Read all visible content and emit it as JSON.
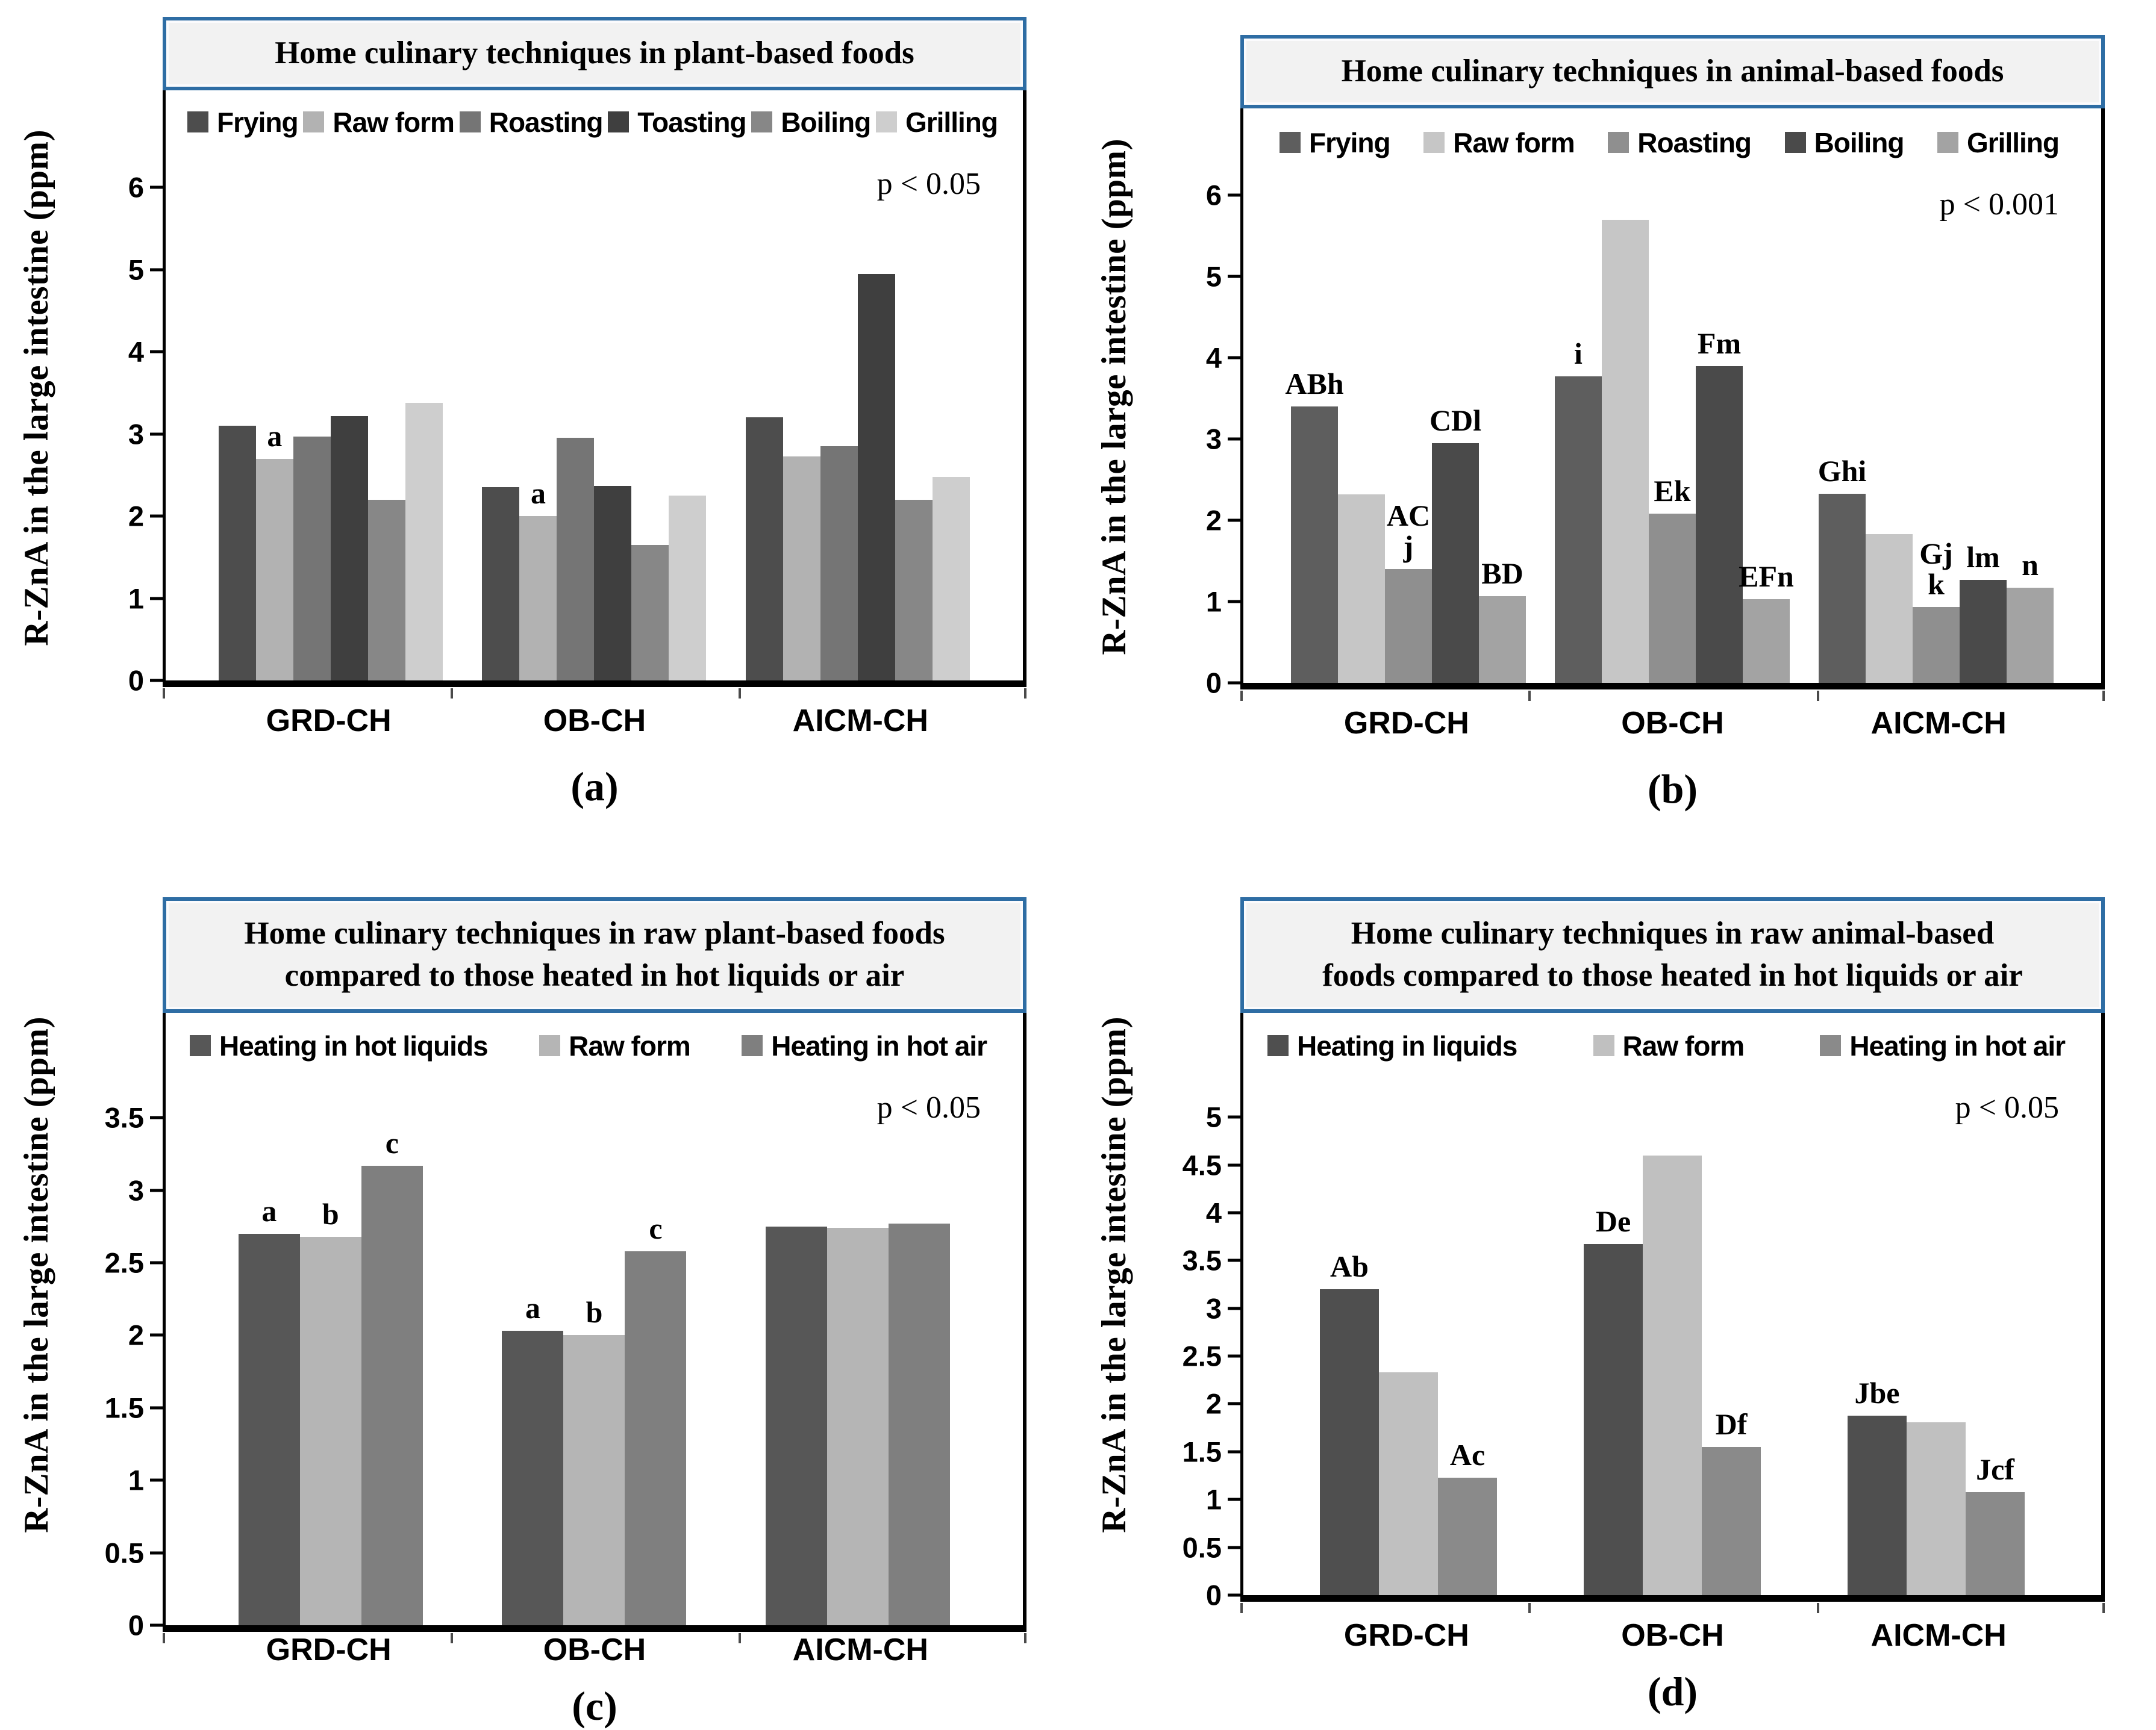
{
  "figure": {
    "ylabel_shared": "R-ZnA in the large intestine (ppm)"
  },
  "chart_data": [
    {
      "type": "bar",
      "panel": "a",
      "title_lines": [
        "Home culinary techniques in plant-based foods"
      ],
      "p_label": "p < 0.05",
      "ylabel": "R-ZnA in the large intestine (ppm)",
      "ylim": [
        0,
        6.45
      ],
      "yticks": [
        "0",
        "1",
        "2",
        "3",
        "4",
        "5",
        "6"
      ],
      "grid": false,
      "legend_position": "top",
      "categories": [
        "GRD-CH",
        "OB-CH",
        "AICM-CH"
      ],
      "series": [
        {
          "name": "Frying",
          "color": "#4d4d4d",
          "values": [
            3.1,
            2.35,
            3.2
          ],
          "annotations": [
            null,
            null,
            null
          ]
        },
        {
          "name": "Raw form",
          "color": "#b2b2b2",
          "values": [
            2.7,
            2.0,
            2.73
          ],
          "annotations": [
            "a",
            "a",
            null
          ]
        },
        {
          "name": "Roasting",
          "color": "#757575",
          "values": [
            2.97,
            2.95,
            2.85
          ],
          "annotations": [
            null,
            null,
            null
          ]
        },
        {
          "name": "Toasting",
          "color": "#3f3f3f",
          "values": [
            3.22,
            2.37,
            4.95
          ],
          "annotations": [
            null,
            null,
            null
          ]
        },
        {
          "name": "Boiling",
          "color": "#878787",
          "values": [
            2.2,
            1.65,
            2.2
          ],
          "annotations": [
            null,
            null,
            null
          ]
        },
        {
          "name": "Grilling",
          "color": "#cecece",
          "values": [
            3.38,
            2.25,
            2.48
          ],
          "annotations": [
            null,
            null,
            null
          ]
        }
      ],
      "caption": "(a)"
    },
    {
      "type": "bar",
      "panel": "b",
      "title_lines": [
        "Home culinary techniques in animal-based foods"
      ],
      "p_label": "p < 0.001",
      "ylabel": "R-ZnA in the large intestine (ppm)",
      "ylim": [
        0,
        6.3
      ],
      "yticks": [
        "0",
        "1",
        "2",
        "3",
        "4",
        "5",
        "6"
      ],
      "grid": false,
      "legend_position": "top",
      "categories": [
        "GRD-CH",
        "OB-CH",
        "AICM-CH"
      ],
      "series": [
        {
          "name": "Frying",
          "color": "#5e5e5e",
          "values": [
            3.4,
            3.77,
            2.33
          ],
          "annotations": [
            "ABh",
            "i",
            "Ghi"
          ]
        },
        {
          "name": "Raw form",
          "color": "#c6c6c6",
          "values": [
            2.32,
            5.7,
            1.83
          ],
          "annotations": [
            null,
            null,
            null
          ]
        },
        {
          "name": "Roasting",
          "color": "#8f8f8f",
          "values": [
            1.4,
            2.08,
            0.93
          ],
          "annotations": [
            "AC\nj",
            "Ek",
            "Gj\nk"
          ]
        },
        {
          "name": "Boiling",
          "color": "#4a4a4a",
          "values": [
            2.95,
            3.9,
            1.27
          ],
          "annotations": [
            "CDl",
            "Fm",
            "lm"
          ]
        },
        {
          "name": "Grilling",
          "color": "#a3a3a3",
          "values": [
            1.07,
            1.03,
            1.17
          ],
          "annotations": [
            "BD",
            "EFn",
            "n"
          ]
        }
      ],
      "caption": "(b)"
    },
    {
      "type": "bar",
      "panel": "c",
      "title_lines": [
        "Home culinary techniques in raw plant-based foods",
        "compared to those heated in hot liquids or air"
      ],
      "p_label": "p < 0.05",
      "ylabel": "R-ZnA in the large intestine (ppm)",
      "ylim": [
        0,
        3.8
      ],
      "yticks": [
        "0",
        "0.5",
        "1",
        "1.5",
        "2",
        "2.5",
        "3",
        "3.5"
      ],
      "grid": false,
      "legend_position": "top",
      "categories": [
        "GRD-CH",
        "OB-CH",
        "AICM-CH"
      ],
      "series": [
        {
          "name": "Heating in hot liquids",
          "color": "#575757",
          "values": [
            2.7,
            2.03,
            2.75
          ],
          "annotations": [
            "a",
            "a",
            null
          ]
        },
        {
          "name": "Raw form",
          "color": "#b5b5b5",
          "values": [
            2.68,
            2.0,
            2.74
          ],
          "annotations": [
            "b",
            "b",
            null
          ]
        },
        {
          "name": "Heating in hot air",
          "color": "#7f7f7f",
          "values": [
            3.17,
            2.58,
            2.77
          ],
          "annotations": [
            "c",
            "c",
            null
          ]
        }
      ],
      "caption": "(c)"
    },
    {
      "type": "bar",
      "panel": "d",
      "title_lines": [
        "Home culinary techniques in raw animal-based",
        "foods compared to those heated in hot liquids or air"
      ],
      "p_label": "p < 0.05",
      "ylabel": "R-ZnA in the large intestine (ppm)",
      "ylim": [
        0,
        5.45
      ],
      "yticks": [
        "0",
        "0.5",
        "1",
        "1.5",
        "2",
        "2.5",
        "3",
        "3.5",
        "4",
        "4.5",
        "5"
      ],
      "grid": false,
      "legend_position": "top",
      "categories": [
        "GRD-CH",
        "OB-CH",
        "AICM-CH"
      ],
      "series": [
        {
          "name": "Heating in liquids",
          "color": "#4f4f4f",
          "values": [
            3.2,
            3.67,
            1.88
          ],
          "annotations": [
            "Ab",
            "De",
            "Jbe"
          ]
        },
        {
          "name": "Raw form",
          "color": "#c0c0c0",
          "values": [
            2.33,
            4.6,
            1.81
          ],
          "annotations": [
            null,
            null,
            null
          ]
        },
        {
          "name": "Heating in hot air",
          "color": "#8a8a8a",
          "values": [
            1.23,
            1.55,
            1.08
          ],
          "annotations": [
            "Ac",
            "Df",
            "Jcf"
          ]
        }
      ],
      "caption": "(d)"
    }
  ]
}
